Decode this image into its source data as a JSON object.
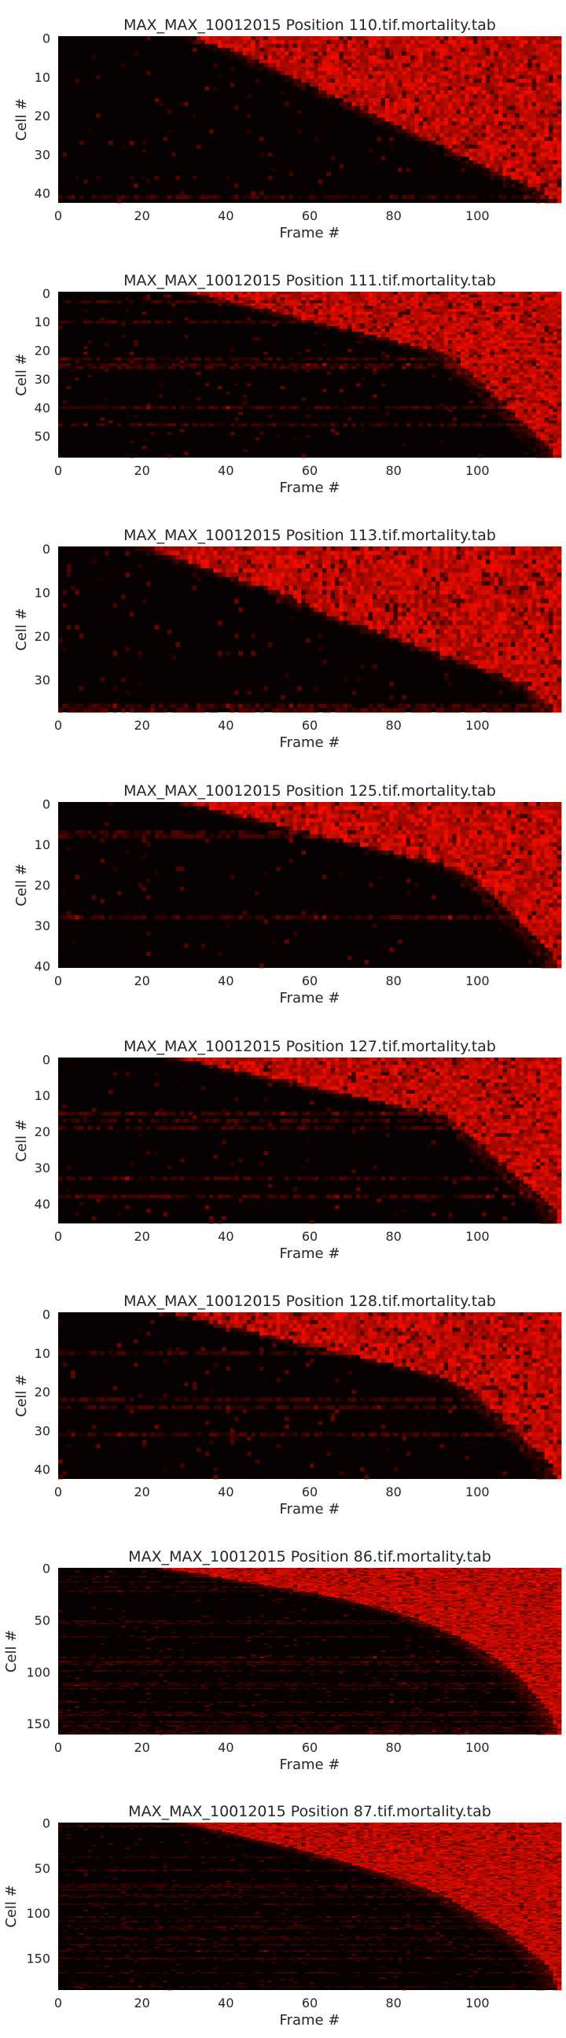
{
  "chart_data": [
    {
      "type": "heatmap",
      "title": "MAX_MAX_10012015 Position 110.tif.mortality.tab",
      "xlabel": "Frame #",
      "ylabel": "Cell #",
      "xlim": [
        0,
        119
      ],
      "ylim": [
        0,
        42
      ],
      "x_ticks": [
        "0",
        "20",
        "40",
        "60",
        "80",
        "100"
      ],
      "y_ticks": [
        "0",
        "10",
        "20",
        "30",
        "40"
      ],
      "colormap": "black-to-red",
      "rows": 43,
      "death_frames": [
        33,
        35,
        38,
        41,
        44,
        46,
        48,
        50,
        52,
        54,
        56,
        58,
        60,
        62,
        64,
        66,
        68,
        70,
        72,
        74,
        76,
        78,
        80,
        82,
        84,
        86,
        88,
        90,
        92,
        94,
        96,
        98,
        100,
        102,
        104,
        106,
        108,
        110,
        112,
        114,
        116,
        117,
        118
      ]
    },
    {
      "type": "heatmap",
      "title": "MAX_MAX_10012015 Position 111.tif.mortality.tab",
      "xlabel": "Frame #",
      "ylabel": "Cell #",
      "xlim": [
        0,
        119
      ],
      "ylim": [
        0,
        57
      ],
      "x_ticks": [
        "0",
        "20",
        "40",
        "60",
        "80",
        "100"
      ],
      "y_ticks": [
        "0",
        "10",
        "20",
        "30",
        "40",
        "50"
      ],
      "colormap": "black-to-red",
      "rows": 58,
      "death_frames": [
        33,
        36,
        40,
        44,
        48,
        52,
        56,
        60,
        64,
        68,
        72,
        76,
        80,
        84,
        88,
        91,
        93,
        95,
        96,
        97,
        98,
        99,
        100,
        101,
        102,
        103,
        104,
        105,
        106,
        107,
        108,
        109,
        110,
        111,
        112,
        113,
        114,
        115,
        116,
        117,
        118,
        118
      ]
    },
    {
      "type": "heatmap",
      "title": "MAX_MAX_10012015 Position 113.tif.mortality.tab",
      "xlabel": "Frame #",
      "ylabel": "Cell #",
      "xlim": [
        0,
        119
      ],
      "ylim": [
        0,
        37
      ],
      "x_ticks": [
        "0",
        "20",
        "40",
        "60",
        "80",
        "100"
      ],
      "y_ticks": [
        "0",
        "10",
        "20",
        "30"
      ],
      "colormap": "black-to-red",
      "rows": 38,
      "death_frames": [
        22,
        25,
        28,
        31,
        34,
        37,
        40,
        43,
        46,
        49,
        52,
        55,
        57,
        59,
        61,
        64,
        67,
        70,
        73,
        76,
        79,
        82,
        85,
        88,
        91,
        94,
        97,
        100,
        103,
        106,
        108,
        110,
        112,
        114,
        115,
        116,
        117,
        118
      ]
    },
    {
      "type": "heatmap",
      "title": "MAX_MAX_10012015 Position 125.tif.mortality.tab",
      "xlabel": "Frame #",
      "ylabel": "Cell #",
      "xlim": [
        0,
        119
      ],
      "ylim": [
        0,
        40
      ],
      "x_ticks": [
        "0",
        "20",
        "40",
        "60",
        "80",
        "100"
      ],
      "y_ticks": [
        "0",
        "10",
        "20",
        "30",
        "40"
      ],
      "colormap": "black-to-red",
      "rows": 41,
      "death_frames": [
        32,
        36,
        40,
        44,
        48,
        52,
        56,
        60,
        64,
        68,
        72,
        76,
        80,
        84,
        88,
        92,
        95,
        97,
        99,
        100,
        101,
        102,
        103,
        104,
        105,
        106,
        107,
        108,
        109,
        110,
        111,
        112,
        113,
        114,
        115,
        116,
        117,
        118,
        118,
        119,
        119
      ]
    },
    {
      "type": "heatmap",
      "title": "MAX_MAX_10012015 Position 127.tif.mortality.tab",
      "xlabel": "Frame #",
      "ylabel": "Cell #",
      "xlim": [
        0,
        119
      ],
      "ylim": [
        0,
        45
      ],
      "x_ticks": [
        "0",
        "20",
        "40",
        "60",
        "80",
        "100"
      ],
      "y_ticks": [
        "0",
        "10",
        "20",
        "30",
        "40"
      ],
      "colormap": "black-to-red",
      "rows": 46,
      "death_frames": [
        30,
        34,
        38,
        42,
        46,
        50,
        54,
        58,
        62,
        66,
        70,
        74,
        78,
        82,
        86,
        90,
        93,
        94,
        95,
        96,
        97,
        98,
        99,
        100,
        101,
        102,
        103,
        104,
        105,
        106,
        107,
        108,
        109,
        110,
        111,
        112,
        113,
        114,
        115,
        116,
        117,
        118,
        118,
        119,
        119,
        119
      ]
    },
    {
      "type": "heatmap",
      "title": "MAX_MAX_10012015 Position 128.tif.mortality.tab",
      "xlabel": "Frame #",
      "ylabel": "Cell #",
      "xlim": [
        0,
        119
      ],
      "ylim": [
        0,
        42
      ],
      "x_ticks": [
        "0",
        "20",
        "40",
        "60",
        "80",
        "100"
      ],
      "y_ticks": [
        "0",
        "10",
        "20",
        "30",
        "40"
      ],
      "colormap": "black-to-red",
      "rows": 43,
      "death_frames": [
        28,
        32,
        36,
        40,
        44,
        48,
        52,
        56,
        60,
        64,
        68,
        72,
        76,
        80,
        84,
        88,
        91,
        93,
        95,
        97,
        99,
        100,
        101,
        102,
        103,
        104,
        105,
        106,
        107,
        108,
        109,
        110,
        111,
        112,
        113,
        114,
        115,
        116,
        117,
        118,
        118,
        119,
        119
      ]
    },
    {
      "type": "heatmap",
      "title": "MAX_MAX_10012015 Position 86.tif.mortality.tab",
      "xlabel": "Frame #",
      "ylabel": "Cell #",
      "xlim": [
        0,
        119
      ],
      "ylim": [
        0,
        160
      ],
      "x_ticks": [
        "0",
        "20",
        "40",
        "60",
        "80",
        "100"
      ],
      "y_ticks": [
        "0",
        "50",
        "100",
        "150"
      ],
      "colormap": "black-to-red",
      "rows": 161,
      "death_frames": [
        25,
        40,
        55,
        68,
        78,
        86,
        92,
        97,
        101,
        105,
        108,
        111,
        113,
        115,
        117,
        118,
        119
      ]
    },
    {
      "type": "heatmap",
      "title": "MAX_MAX_10012015 Position 87.tif.mortality.tab",
      "xlabel": "Frame #",
      "ylabel": "Cell #",
      "xlim": [
        0,
        119
      ],
      "ylim": [
        0,
        185
      ],
      "x_ticks": [
        "0",
        "20",
        "40",
        "60",
        "80",
        "100"
      ],
      "y_ticks": [
        "0",
        "50",
        "100",
        "150"
      ],
      "colormap": "black-to-red",
      "rows": 186,
      "death_frames": [
        30,
        40,
        50,
        60,
        68,
        76,
        83,
        89,
        94,
        98,
        102,
        106,
        109,
        112,
        115,
        117,
        118,
        119
      ]
    }
  ]
}
